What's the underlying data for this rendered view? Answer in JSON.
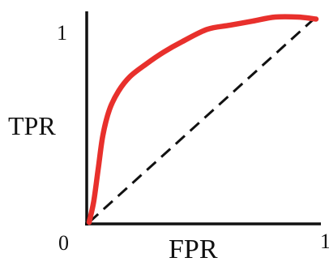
{
  "chart_data": {
    "type": "line",
    "title": "",
    "xlabel": "FPR",
    "ylabel": "TPR",
    "xlim": [
      0,
      1
    ],
    "ylim": [
      0,
      1
    ],
    "grid": false,
    "legend": "none",
    "x_ticks": [
      {
        "value": 0,
        "label": "0"
      },
      {
        "value": 1,
        "label": "1"
      }
    ],
    "y_ticks": [
      {
        "value": 1,
        "label": "1"
      }
    ],
    "series": [
      {
        "style": "solid",
        "color": "#e8302c",
        "points": [
          [
            0.0,
            0.0
          ],
          [
            0.02,
            0.1
          ],
          [
            0.04,
            0.26
          ],
          [
            0.06,
            0.42
          ],
          [
            0.09,
            0.55
          ],
          [
            0.13,
            0.64
          ],
          [
            0.18,
            0.71
          ],
          [
            0.25,
            0.77
          ],
          [
            0.33,
            0.83
          ],
          [
            0.41,
            0.88
          ],
          [
            0.52,
            0.94
          ],
          [
            0.62,
            0.96
          ],
          [
            0.72,
            0.98
          ],
          [
            0.82,
            1.0
          ],
          [
            0.92,
            1.0
          ],
          [
            1.0,
            0.99
          ]
        ]
      },
      {
        "style": "dashed",
        "color": "#111111",
        "points": [
          [
            0.0,
            0.0
          ],
          [
            1.0,
            1.0
          ]
        ]
      }
    ]
  }
}
